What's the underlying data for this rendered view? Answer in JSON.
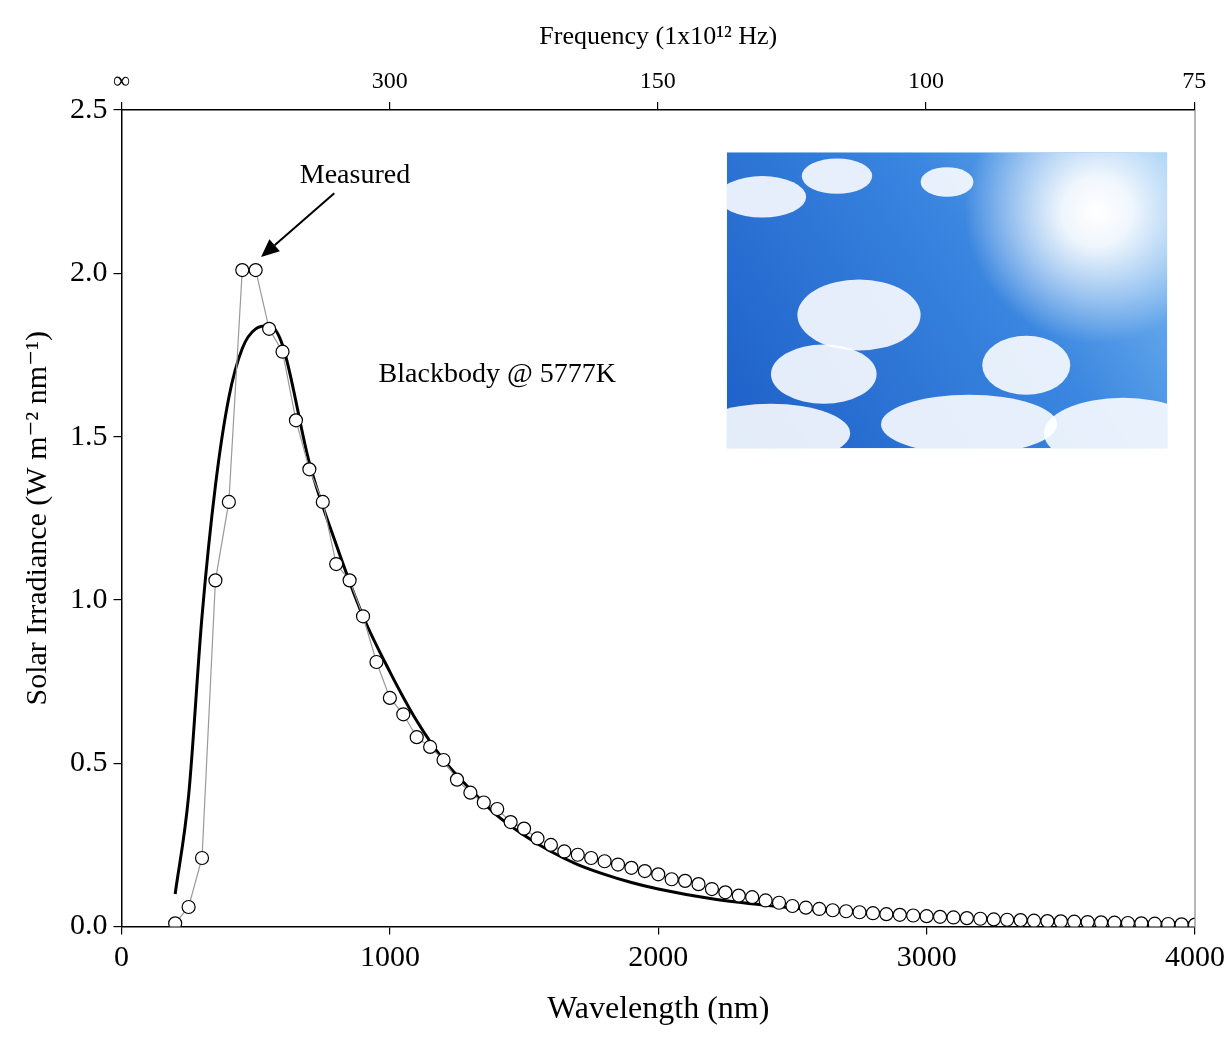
{
  "chart_data": {
    "type": "line",
    "x_label": "Wavelength (nm)",
    "y_label": "Solar Irradiance (W m⁻² nm⁻¹)",
    "x2_label": "Frequency (1x10¹² Hz)",
    "xlim": [
      0,
      4000
    ],
    "xticks": [
      0,
      1000,
      2000,
      3000,
      4000
    ],
    "x2lim": [
      0,
      4000
    ],
    "x2ticks": [
      {
        "value": 0,
        "label": "∞"
      },
      {
        "value": 999.3,
        "label": "300"
      },
      {
        "value": 1998.6,
        "label": "150"
      },
      {
        "value": 2997.9,
        "label": "100"
      },
      {
        "value": 3997.2,
        "label": "75"
      }
    ],
    "ylim": [
      0,
      2.5
    ],
    "yticks": [
      {
        "value": 0,
        "label": "0.0"
      },
      0.5,
      {
        "value": 1,
        "label": "1.0"
      },
      1.5,
      {
        "value": 2,
        "label": "2.0"
      },
      2.5
    ],
    "grid": false,
    "series": [
      {
        "color": "#999999",
        "marker": "circle",
        "line_style": "solid",
        "x": [
          200,
          250,
          300,
          350,
          400,
          450,
          500,
          550,
          600,
          650,
          700,
          750,
          800,
          850,
          900,
          950,
          1000,
          1050,
          1100,
          1150,
          1200,
          1250,
          1300,
          1350,
          1400,
          1450,
          1500,
          1550,
          1600,
          1650,
          1700,
          1750,
          1800,
          1850,
          1900,
          1950,
          2000,
          2050,
          2100,
          2150,
          2200,
          2250,
          2300,
          2350,
          2400,
          2450,
          2500,
          2550,
          2600,
          2650,
          2700,
          2750,
          2800,
          2850,
          2900,
          2950,
          3000,
          3050,
          3100,
          3150,
          3200,
          3250,
          3300,
          3350,
          3400,
          3450,
          3500,
          3550,
          3600,
          3650,
          3700,
          3750,
          3800,
          3850,
          3900,
          3950,
          4000
        ],
        "values": [
          0.01,
          0.06,
          0.21,
          1.06,
          1.3,
          2.01,
          2.01,
          1.83,
          1.76,
          1.55,
          1.4,
          1.3,
          1.11,
          1.06,
          0.95,
          0.81,
          0.7,
          0.65,
          0.58,
          0.55,
          0.51,
          0.45,
          0.41,
          0.38,
          0.36,
          0.32,
          0.3,
          0.27,
          0.25,
          0.23,
          0.22,
          0.21,
          0.2,
          0.19,
          0.18,
          0.17,
          0.16,
          0.145,
          0.14,
          0.13,
          0.115,
          0.105,
          0.095,
          0.09,
          0.08,
          0.073,
          0.063,
          0.058,
          0.054,
          0.05,
          0.047,
          0.044,
          0.041,
          0.038,
          0.036,
          0.034,
          0.032,
          0.03,
          0.028,
          0.026,
          0.024,
          0.022,
          0.021,
          0.02,
          0.018,
          0.017,
          0.016,
          0.015,
          0.014,
          0.013,
          0.012,
          0.011,
          0.01,
          0.009,
          0.008,
          0.007,
          0.006
        ]
      },
      {
        "color": "#000000",
        "marker": "none",
        "line_style": "solid",
        "x": [
          200,
          250,
          300,
          350,
          400,
          450,
          500,
          550,
          600,
          700,
          800,
          900,
          1000,
          1100,
          1200,
          1300,
          1400,
          1500,
          1600,
          1700,
          1800,
          1900,
          2000,
          2200,
          2400,
          2600,
          2800,
          3000,
          3200,
          3400,
          3600,
          3800,
          4000
        ],
        "values": [
          0.1,
          0.4,
          0.95,
          1.35,
          1.62,
          1.77,
          1.83,
          1.84,
          1.78,
          1.42,
          1.17,
          0.95,
          0.78,
          0.63,
          0.51,
          0.42,
          0.34,
          0.28,
          0.23,
          0.19,
          0.16,
          0.135,
          0.115,
          0.085,
          0.065,
          0.05,
          0.04,
          0.032,
          0.025,
          0.02,
          0.016,
          0.013,
          0.01
        ]
      }
    ],
    "annotations": [
      {
        "text": "Measured",
        "x": 870,
        "y": 2.3,
        "arrow_x": 520,
        "arrow_y": 2.05
      },
      {
        "text": "Blackbody @ 5777K",
        "x": 1400,
        "y": 1.69
      }
    ]
  }
}
